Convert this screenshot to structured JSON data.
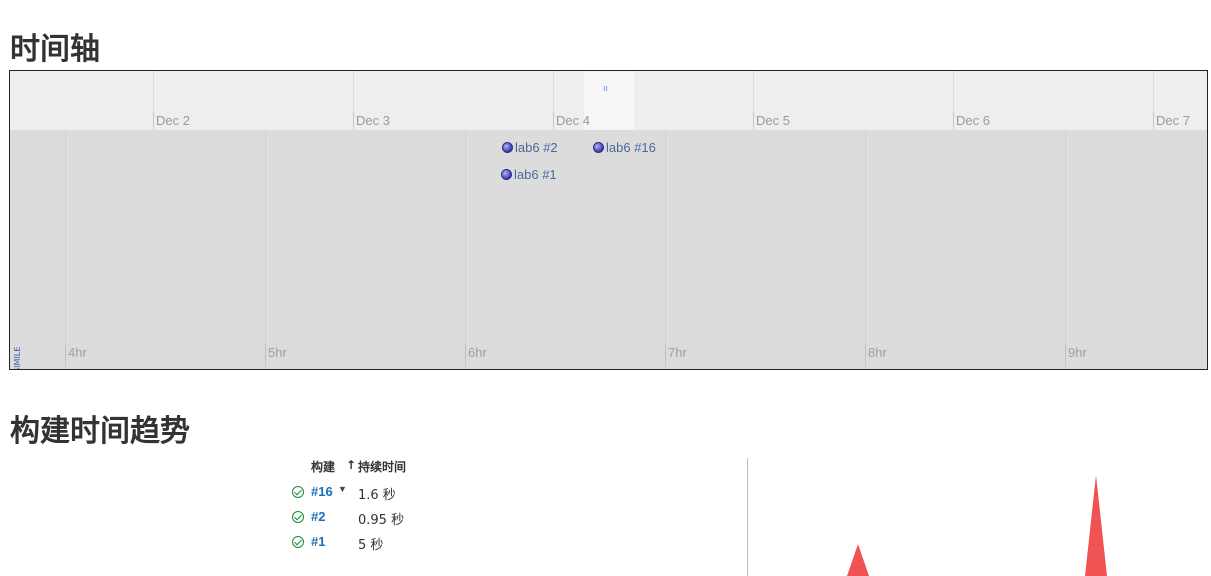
{
  "timeline": {
    "title": "时间轴",
    "top_ticks": [
      "Dec 2",
      "Dec 3",
      "Dec 4",
      "Dec 5",
      "Dec 6",
      "Dec 7"
    ],
    "bottom_ticks": [
      "4hr",
      "5hr",
      "6hr",
      "7hr",
      "8hr",
      "9hr"
    ],
    "events": [
      "lab6 #2",
      "lab6 #16",
      "lab6 #1"
    ],
    "credit": "Timeline © SIMILE",
    "marker": "ıı"
  },
  "trend": {
    "title": "构建时间趋势",
    "header_build": "构建",
    "header_sort": "↑",
    "header_duration": "持续时间",
    "rows": [
      {
        "build": "#16",
        "duration": "1.6 秒",
        "has_menu": true
      },
      {
        "build": "#2",
        "duration": "0.95 秒",
        "has_menu": false
      },
      {
        "build": "#1",
        "duration": "5 秒",
        "has_menu": false
      }
    ],
    "status_color": "#138a36",
    "spike_color": "#f05353"
  }
}
